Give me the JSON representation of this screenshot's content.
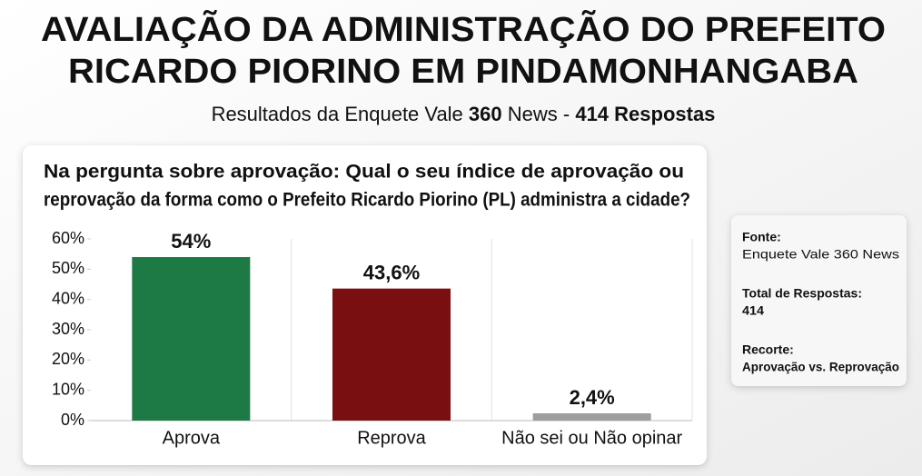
{
  "chart_data": {
    "type": "bar",
    "title": [
      "AVALIAÇÃO DA ADMINISTRAÇÃO DO PREFEITO",
      "RICARDO PIORINO EM PINDAMONHANGABA"
    ],
    "subtitle": [
      "Resultados da Enquete Vale ",
      "360",
      " News - ",
      "414 Respostas"
    ],
    "question": [
      "Na pergunta sobre aprovação: Qual o seu índice de aprovação ou",
      "reprovação da forma como o Prefeito Ricardo Piorino (PL) administra a cidade?"
    ],
    "categories": [
      "Aprova",
      "Reprova",
      "Não sei ou Não opinar"
    ],
    "values": [
      54,
      43.6,
      2.4
    ],
    "value_labels": [
      "54%",
      "43,6%",
      "2,4%"
    ],
    "colors": [
      "#1e7a45",
      "#7a0f12",
      "#9e9e9e"
    ],
    "ylim": [
      0,
      60
    ],
    "yticks": [
      {
        "value": 0,
        "label": "0%"
      },
      {
        "value": 10,
        "label": "10%"
      },
      {
        "value": 20,
        "label": "20%"
      },
      {
        "value": 30,
        "label": "30%"
      },
      {
        "value": 40,
        "label": "40%"
      },
      {
        "value": 50,
        "label": "50%"
      },
      {
        "value": 60,
        "label": "60%"
      }
    ],
    "grid": false,
    "notes": [
      {
        "label": "Fonte:",
        "text": "Enquete Vale 360 News"
      },
      {
        "label": "Total de Respostas:",
        "text": "414"
      },
      {
        "label": "Recorte:",
        "text": "Aprovação vs. Reprovação"
      }
    ]
  }
}
